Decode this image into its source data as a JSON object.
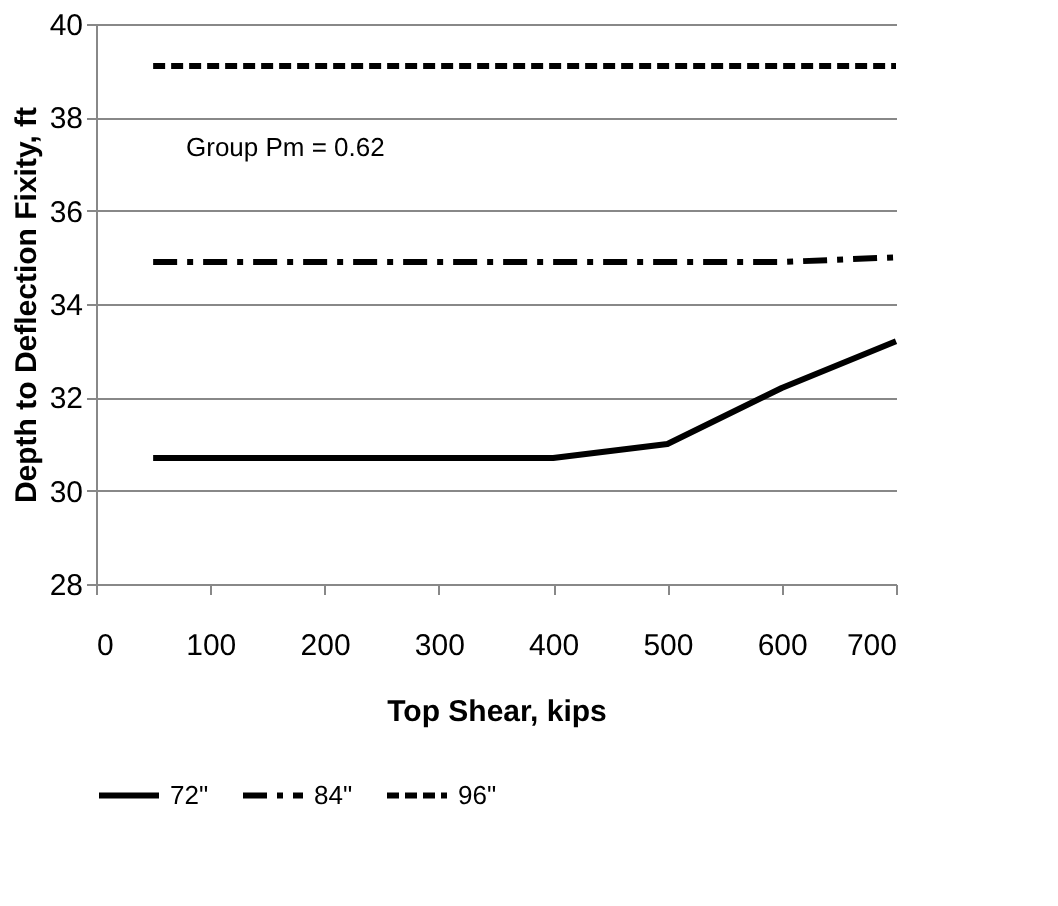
{
  "chart_data": {
    "type": "line",
    "xlabel": "Top Shear, kips",
    "ylabel": "Depth to Deflection Fixity, ft",
    "xlim": [
      0,
      700
    ],
    "xticks": [
      0,
      100,
      200,
      300,
      400,
      500,
      600,
      700
    ],
    "ylim": [
      28,
      40
    ],
    "yticks": [
      28,
      30,
      32,
      34,
      36,
      38,
      40
    ],
    "grid": "y",
    "legend": "bottom",
    "marker": "none",
    "x": [
      50,
      100,
      200,
      300,
      400,
      500,
      600,
      700
    ],
    "series": [
      {
        "name": "72\"",
        "color": "#000000",
        "line_style": "solid",
        "values": [
          30.7,
          30.7,
          30.7,
          30.7,
          30.7,
          31.0,
          32.2,
          33.2
        ]
      },
      {
        "name": "84\"",
        "color": "#000000",
        "line_style": "dashdot",
        "values": [
          34.9,
          34.9,
          34.9,
          34.9,
          34.9,
          34.9,
          34.9,
          35.0
        ]
      },
      {
        "name": "96\"",
        "color": "#000000",
        "line_style": "dashed",
        "values": [
          39.1,
          39.1,
          39.1,
          39.1,
          39.1,
          39.1,
          39.1,
          39.1
        ]
      }
    ],
    "annotations": [
      "Group Pm = 0.62"
    ]
  }
}
